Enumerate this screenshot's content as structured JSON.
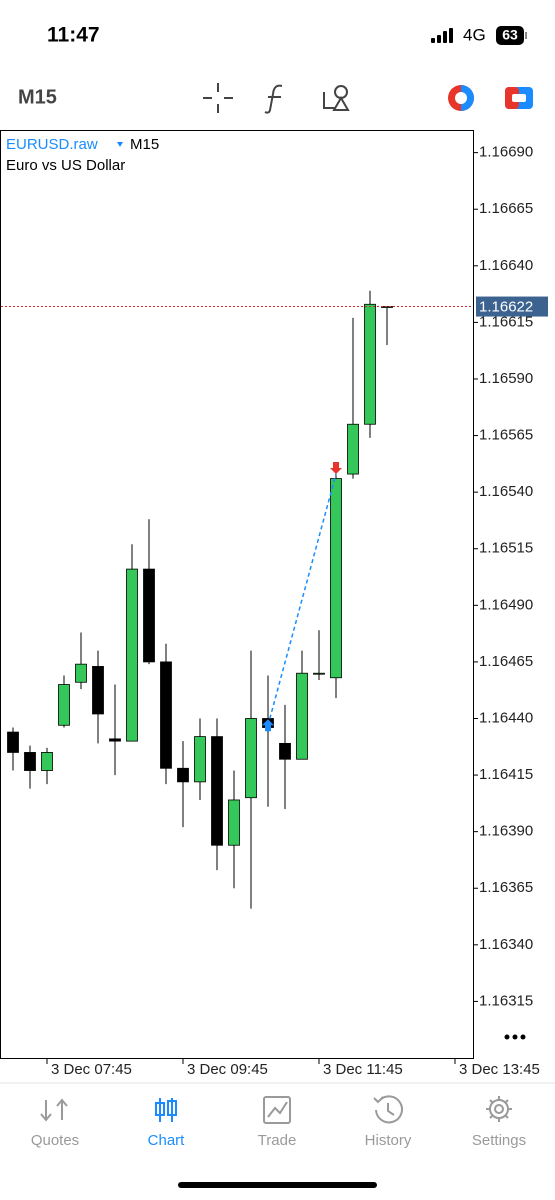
{
  "status_bar": {
    "time": "11:47",
    "network": "4G",
    "battery": "63"
  },
  "toolbar": {
    "timeframe": "M15"
  },
  "chart_data": {
    "type": "candlestick",
    "symbol": "EURUSD.raw",
    "timeframe": "M15",
    "description": "Euro vs US Dollar",
    "categories": [
      null,
      null,
      "3 Dec 07:45",
      null,
      null,
      null,
      null,
      null,
      null,
      null,
      "3 Dec 09:45",
      null,
      null,
      null,
      null,
      null,
      null,
      null,
      "3 Dec 11:45",
      null,
      null,
      null,
      null,
      null,
      null,
      null,
      "3 Dec 13:45"
    ],
    "open": [
      1.16434,
      1.16425,
      1.16417,
      1.16437,
      1.16456,
      1.16463,
      1.16431,
      1.1643,
      1.16506,
      1.16465,
      1.16418,
      1.16412,
      1.16432,
      1.16384,
      1.16405,
      1.1644,
      1.16429,
      1.16422,
      1.1646,
      1.16458,
      1.16548,
      1.1657,
      1.16622,
      null,
      null,
      null,
      null
    ],
    "high": [
      1.16436,
      1.16428,
      1.16427,
      1.16459,
      1.16478,
      1.1647,
      1.16455,
      1.16517,
      1.16528,
      1.16473,
      1.1643,
      1.1644,
      1.1644,
      1.16417,
      1.1647,
      1.16459,
      1.16446,
      1.1647,
      1.16479,
      1.1655,
      1.16617,
      1.16629,
      1.16622,
      null,
      null,
      null,
      null
    ],
    "low": [
      1.16417,
      1.16409,
      1.16411,
      1.16436,
      1.16453,
      1.16429,
      1.16415,
      1.1643,
      1.16464,
      1.16411,
      1.16392,
      1.16404,
      1.16373,
      1.16365,
      1.16356,
      1.16401,
      1.164,
      1.16422,
      1.16457,
      1.16449,
      1.16546,
      1.16564,
      1.16605,
      null,
      null,
      null,
      null
    ],
    "close": [
      1.16425,
      1.16417,
      1.16425,
      1.16455,
      1.16464,
      1.16442,
      1.1643,
      1.16506,
      1.16465,
      1.16418,
      1.16412,
      1.16432,
      1.16384,
      1.16404,
      1.1644,
      1.16436,
      1.16422,
      1.1646,
      1.1646,
      1.16546,
      1.1657,
      1.16623,
      1.16622,
      null,
      null,
      null,
      null
    ],
    "up_color": "#34c759",
    "down_color": "#000000",
    "ylim": [
      1.1629,
      1.167
    ],
    "yticks": [
      {
        "value": 1.1669,
        "label": "1.16690"
      },
      {
        "value": 1.16665,
        "label": "1.16665"
      },
      {
        "value": 1.1664,
        "label": "1.16640"
      },
      {
        "value": 1.16615,
        "label": "1.16615"
      },
      {
        "value": 1.1659,
        "label": "1.16590"
      },
      {
        "value": 1.16565,
        "label": "1.16565"
      },
      {
        "value": 1.1654,
        "label": "1.16540"
      },
      {
        "value": 1.16515,
        "label": "1.16515"
      },
      {
        "value": 1.1649,
        "label": "1.16490"
      },
      {
        "value": 1.16465,
        "label": "1.16465"
      },
      {
        "value": 1.1644,
        "label": "1.16440"
      },
      {
        "value": 1.16415,
        "label": "1.16415"
      },
      {
        "value": 1.1639,
        "label": "1.16390"
      },
      {
        "value": 1.16365,
        "label": "1.16365"
      },
      {
        "value": 1.1634,
        "label": "1.16340"
      },
      {
        "value": 1.16315,
        "label": "1.16315"
      }
    ],
    "current_price": 1.16622,
    "current_price_color": "#d62b2b",
    "trades": [
      {
        "index": 15,
        "price": 1.16437,
        "color": "#1a8cff"
      },
      {
        "index": 19,
        "price": 1.16548,
        "color": "#e8352b"
      }
    ]
  },
  "nav": {
    "items": [
      "Quotes",
      "Chart",
      "Trade",
      "History",
      "Settings"
    ],
    "active": 1,
    "active_color": "#1a8cff",
    "color": "#9a9a9a"
  }
}
